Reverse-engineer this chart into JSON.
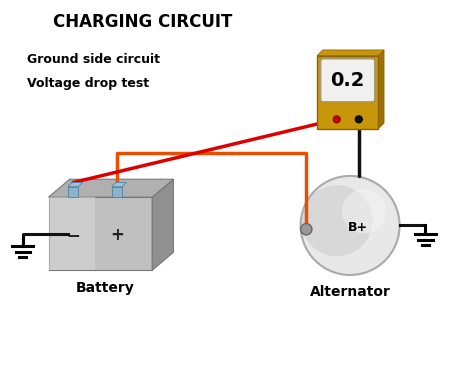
{
  "title": "CHARGING CIRCUIT",
  "subtitle_line1": "Ground side circuit",
  "subtitle_line2": "Voltage drop test",
  "meter_value": "0.2",
  "battery_label": "Battery",
  "alternator_label": "Alternator",
  "bplus_label": "B+",
  "bg_color": "#ffffff",
  "title_color": "#000000",
  "subtitle_color": "#000000",
  "wire_orange_color": "#e85000",
  "wire_black_color": "#111111",
  "wire_red_color": "#dd0000",
  "ground_color": "#000000",
  "meter_gold": "#c8960a",
  "meter_gold_dark": "#8b6500",
  "meter_gold_mid": "#a07008",
  "meter_display_bg": "#f0f0f0",
  "bat_front": "#c0c0c0",
  "bat_top": "#b0b0b0",
  "bat_right": "#909090",
  "bat_highlight": "#d8d8d8",
  "terminal_blue": "#8ab4cc",
  "terminal_blue_top": "#9ac4dc",
  "terminal_edge": "#5580a0",
  "alt_light": "#e8e8e8",
  "alt_dark": "#bbbbbb",
  "alt_edge": "#aaaaaa"
}
